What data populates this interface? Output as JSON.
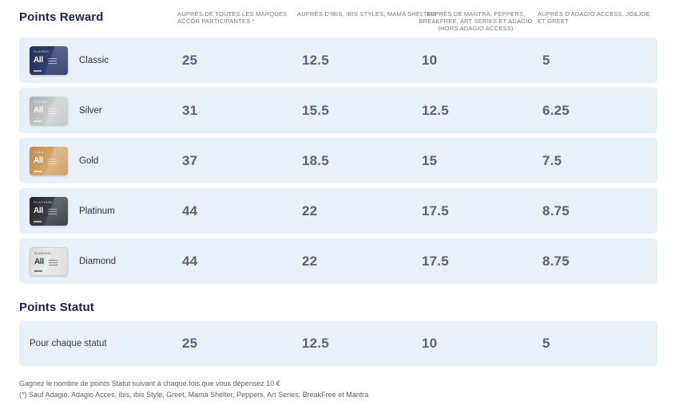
{
  "brand": {
    "logo": "All"
  },
  "reward": {
    "title": "Points Reward",
    "columns": [
      "AUPRÈS DE TOUTES LES MARQUES ACCOR PARTICIPANTES *",
      "AUPRÈS D'IBIS, IBIS STYLES, MAMA SHELTER",
      "AUPRÈS DE MANTRA, PEPPERS, BREAKFREE, ART SERIES ET ADAGIO (HORS ADAGIO ACCESS)",
      "AUPRÈS D'ADAGIO ACCESS, JO&JOE ET GREET"
    ],
    "rows": [
      {
        "tier": "Classic",
        "card_label": "CLASSIC",
        "values": [
          "25",
          "12.5",
          "10",
          "5"
        ]
      },
      {
        "tier": "Silver",
        "card_label": "SILVER",
        "values": [
          "31",
          "15.5",
          "12.5",
          "6.25"
        ]
      },
      {
        "tier": "Gold",
        "card_label": "GOLD",
        "values": [
          "37",
          "18.5",
          "15",
          "7.5"
        ]
      },
      {
        "tier": "Platinum",
        "card_label": "PLATINUM",
        "values": [
          "44",
          "22",
          "17.5",
          "8.75"
        ]
      },
      {
        "tier": "Diamond",
        "card_label": "DIAMOND",
        "values": [
          "44",
          "22",
          "17.5",
          "8.75"
        ]
      }
    ]
  },
  "statut": {
    "title": "Points Statut",
    "row": {
      "label": "Pour chaque statut",
      "values": [
        "25",
        "12.5",
        "10",
        "5"
      ]
    }
  },
  "footnotes": [
    "Gagnez le nombre de points Statut suivant à chaque fois que vous dépensez 10 €",
    "(*) Sauf Adagio, Adagio Acces, ibis, ibis Style, Greet, Mama Shelter, Peppers, Art Series, BreakFree et Mantra"
  ],
  "colors": {
    "row_background": "#e8f1f8",
    "value_text": "#5a646e",
    "title_text": "#1c2145",
    "header_text": "#74787c",
    "card_classic": "#2c3a68",
    "card_silver": "#b9bfc4",
    "card_gold": "#c8935a",
    "card_platinum": "#272c33",
    "card_diamond": "#e3e5e7"
  }
}
